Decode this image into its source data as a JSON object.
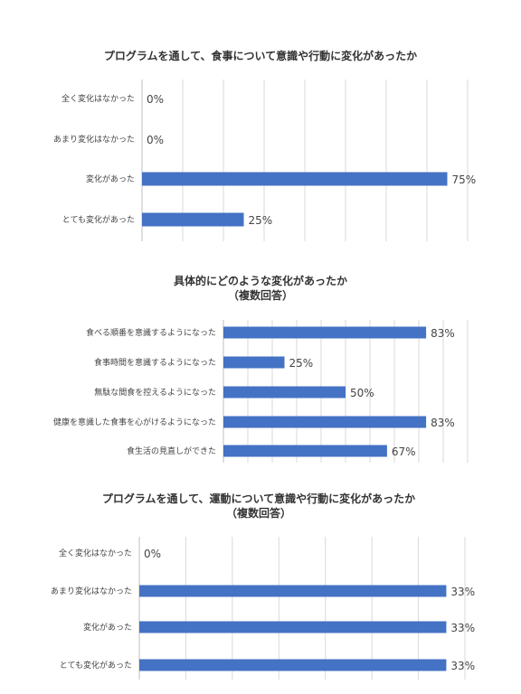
{
  "colors": {
    "bar": "#4472c4",
    "grid": "#d9d9d9",
    "axis": "#bfbfbf",
    "text": "#444444"
  },
  "chart_data": [
    {
      "type": "bar",
      "orientation": "horizontal",
      "title": [
        "プログラムを通して、食事について意識や行動に変化があったか"
      ],
      "categories": [
        "全く変化はなかった",
        "あまり変化はなかった",
        "変化があった",
        "とても変化があった"
      ],
      "values": [
        0,
        0,
        75,
        25
      ],
      "value_labels": [
        "0%",
        "0%",
        "75%",
        "25%"
      ],
      "xlim": [
        0,
        80
      ],
      "grid_step": 10,
      "grid": true,
      "legend": "none"
    },
    {
      "type": "bar",
      "orientation": "horizontal",
      "title": [
        "具体的にどのような変化があったか",
        "（複数回答）"
      ],
      "categories": [
        "食べる順番を意識するようになった",
        "食事時間を意識するようになった",
        "無駄な間食を控えるようになった",
        "健康を意識した食事を心がけるようになった",
        "食生活の見直しができた"
      ],
      "values": [
        83,
        25,
        50,
        83,
        67
      ],
      "value_labels": [
        "83%",
        "25%",
        "50%",
        "83%",
        "67%"
      ],
      "xlim": [
        0,
        100
      ],
      "grid_step": 10,
      "grid": true,
      "legend": "none"
    },
    {
      "type": "bar",
      "orientation": "horizontal",
      "title": [
        "プログラムを通して、運動について意識や行動に変化があったか",
        "（複数回答）"
      ],
      "categories": [
        "全く変化はなかった",
        "あまり変化はなかった",
        "変化があった",
        "とても変化があった"
      ],
      "values": [
        0,
        33,
        33,
        33
      ],
      "value_labels": [
        "0%",
        "33%",
        "33%",
        "33%"
      ],
      "xlim": [
        0,
        35
      ],
      "grid_step": 5,
      "grid": true,
      "legend": "none"
    }
  ]
}
